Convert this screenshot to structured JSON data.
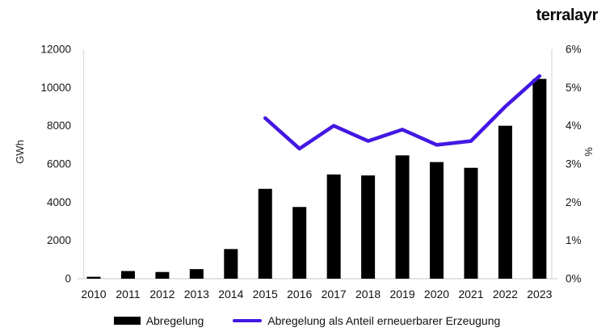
{
  "brand": {
    "name": "terralayr"
  },
  "chart_data": {
    "type": "bar",
    "title": "",
    "categories": [
      "2010",
      "2011",
      "2012",
      "2013",
      "2014",
      "2015",
      "2016",
      "2017",
      "2018",
      "2019",
      "2020",
      "2021",
      "2022",
      "2023"
    ],
    "series": [
      {
        "name": "Abregelung",
        "type": "bar",
        "axis": "left",
        "color": "#000000",
        "values": [
          100,
          400,
          350,
          500,
          1550,
          4700,
          3750,
          5450,
          5400,
          6450,
          6100,
          5800,
          8000,
          10450
        ]
      },
      {
        "name": "Abregelung als Anteil erneuerbarer Erzeugung",
        "type": "line",
        "axis": "right",
        "color": "#4317e3",
        "values": [
          null,
          null,
          null,
          null,
          null,
          4.2,
          3.4,
          4.0,
          3.6,
          3.9,
          3.5,
          3.6,
          4.5,
          5.3
        ]
      }
    ],
    "left_axis": {
      "label": "GWh",
      "min": 0,
      "max": 12000,
      "tick_labels": [
        "0",
        "2000",
        "4000",
        "6000",
        "8000",
        "10000",
        "12000"
      ]
    },
    "right_axis": {
      "label": "%",
      "min": 0,
      "max": 6,
      "tick_labels": [
        "0%",
        "1%",
        "2%",
        "3%",
        "4%",
        "5%",
        "6%"
      ]
    },
    "grid": false,
    "legend_position": "bottom"
  },
  "legend": {
    "items": [
      {
        "label": "Abregelung",
        "swatch": "bar",
        "color": "#000000"
      },
      {
        "label": "Abregelung als Anteil erneuerbarer Erzeugung",
        "swatch": "line",
        "color": "#4317e3"
      }
    ]
  }
}
